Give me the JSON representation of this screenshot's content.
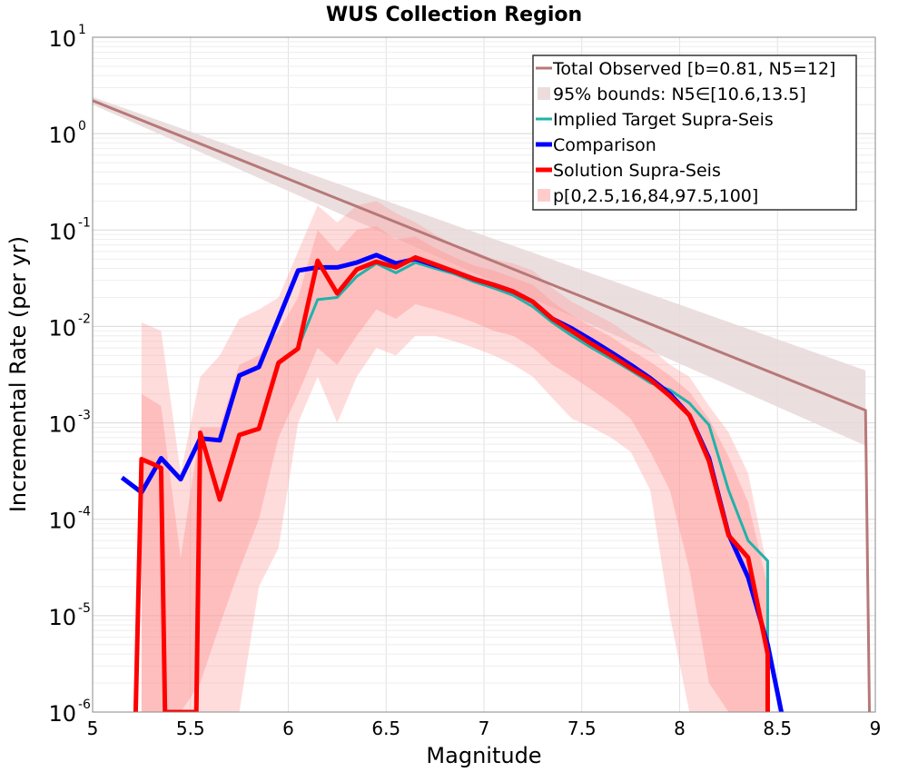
{
  "chart_data": {
    "type": "line",
    "title": "WUS Collection Region",
    "xlabel": "Magnitude",
    "ylabel": "Incremental Rate (per yr)",
    "xlim": [
      5,
      9
    ],
    "ylim": [
      1e-06,
      10
    ],
    "yscale": "log",
    "grid": true,
    "legend_position": "top-right",
    "x_ticks": [
      "5",
      "5.5",
      "6",
      "6.5",
      "7",
      "7.5",
      "8",
      "8.5",
      "9"
    ],
    "y_ticks": [
      {
        "base": "10",
        "exp": "1"
      },
      {
        "base": "10",
        "exp": "0"
      },
      {
        "base": "10",
        "exp": "-1"
      },
      {
        "base": "10",
        "exp": "-2"
      },
      {
        "base": "10",
        "exp": "-3"
      },
      {
        "base": "10",
        "exp": "-4"
      },
      {
        "base": "10",
        "exp": "-5"
      },
      {
        "base": "10",
        "exp": "-6"
      }
    ],
    "legend": [
      {
        "label": "Total Observed [b=0.81, N5=12]",
        "color": "#b87878",
        "kind": "line"
      },
      {
        "label": "95% bounds: N5∈[10.6,13.5]",
        "color": "#ecdcdc",
        "kind": "box"
      },
      {
        "label": "Implied Target Supra-Seis",
        "color": "#20b2aa",
        "kind": "line"
      },
      {
        "label": "Comparison",
        "color": "#0000ff",
        "kind": "thick"
      },
      {
        "label": "Solution Supra-Seis",
        "color": "#ff0000",
        "kind": "thick"
      },
      {
        "label": "p[0,2.5,16,84,97.5,100]",
        "color": "#ffcccc",
        "kind": "box"
      }
    ],
    "bounds": {
      "color": "#e8d8d8",
      "x": [
        5.0,
        8.95
      ],
      "lower": [
        2.0,
        0.00058
      ],
      "upper": [
        2.4,
        0.0035
      ]
    },
    "series": [
      {
        "name": "Total Observed [b=0.81, N5=12]",
        "color": "#b87878",
        "width": 3,
        "x": [
          5.0,
          8.95,
          8.97
        ],
        "y": [
          2.2,
          0.00135,
          1e-06
        ]
      },
      {
        "name": "Implied Target Supra-Seis",
        "color": "#20b2aa",
        "width": 3,
        "x": [
          6.05,
          6.15,
          6.25,
          6.35,
          6.45,
          6.55,
          6.65,
          6.75,
          6.85,
          6.95,
          7.05,
          7.15,
          7.25,
          7.35,
          7.45,
          7.55,
          7.65,
          7.75,
          7.85,
          7.95,
          8.05,
          8.15,
          8.25,
          8.35,
          8.45,
          8.45
        ],
        "y": [
          0.006,
          0.019,
          0.02,
          0.033,
          0.045,
          0.036,
          0.046,
          0.04,
          0.035,
          0.029,
          0.025,
          0.021,
          0.016,
          0.011,
          0.008,
          0.006,
          0.0046,
          0.0035,
          0.0026,
          0.0022,
          0.0016,
          0.00095,
          0.0002,
          6e-05,
          3.7e-05,
          1e-06
        ]
      },
      {
        "name": "Comparison",
        "color": "#0000ff",
        "width": 5,
        "x": [
          5.15,
          5.25,
          5.35,
          5.45,
          5.55,
          5.65,
          5.75,
          5.85,
          5.95,
          6.05,
          6.15,
          6.25,
          6.35,
          6.45,
          6.55,
          6.65,
          6.75,
          6.85,
          6.95,
          7.05,
          7.15,
          7.25,
          7.35,
          7.45,
          7.55,
          7.65,
          7.75,
          7.85,
          7.95,
          8.05,
          8.15,
          8.25,
          8.35,
          8.45,
          8.52
        ],
        "y": [
          0.00027,
          0.00019,
          0.00043,
          0.00026,
          0.00069,
          0.00066,
          0.0031,
          0.0038,
          0.012,
          0.038,
          0.041,
          0.041,
          0.046,
          0.055,
          0.045,
          0.05,
          0.043,
          0.037,
          0.031,
          0.027,
          0.023,
          0.018,
          0.012,
          0.0095,
          0.0072,
          0.0054,
          0.004,
          0.0029,
          0.002,
          0.0012,
          0.00043,
          7e-05,
          2.5e-05,
          5e-06,
          1e-06
        ]
      },
      {
        "name": "Solution Supra-Seis",
        "color": "#ff0000",
        "width": 5,
        "x": [
          5.22,
          5.25,
          5.3,
          5.35,
          5.37,
          5.53,
          5.55,
          5.65,
          5.75,
          5.85,
          5.95,
          6.05,
          6.15,
          6.25,
          6.35,
          6.45,
          6.55,
          6.65,
          6.75,
          6.85,
          6.95,
          7.05,
          7.15,
          7.25,
          7.35,
          7.45,
          7.55,
          7.65,
          7.75,
          7.85,
          7.95,
          8.05,
          8.15,
          8.25,
          8.35,
          8.45,
          8.45
        ],
        "y": [
          1e-06,
          0.00042,
          0.00038,
          0.00034,
          1e-06,
          1e-06,
          0.00079,
          0.00016,
          0.00075,
          0.00087,
          0.0042,
          0.0059,
          0.048,
          0.022,
          0.039,
          0.047,
          0.041,
          0.052,
          0.044,
          0.037,
          0.031,
          0.027,
          0.023,
          0.018,
          0.012,
          0.0089,
          0.0066,
          0.005,
          0.0037,
          0.0028,
          0.0019,
          0.0012,
          0.0004,
          6.8e-05,
          4e-05,
          4e-06,
          1e-06
        ]
      }
    ],
    "bands": {
      "color": "#ff9a9a",
      "x": [
        5.25,
        5.35,
        5.45,
        5.55,
        5.65,
        5.75,
        5.85,
        5.95,
        6.05,
        6.15,
        6.25,
        6.35,
        6.45,
        6.55,
        6.65,
        6.75,
        6.85,
        6.95,
        7.05,
        7.15,
        7.25,
        7.35,
        7.45,
        7.55,
        7.65,
        7.75,
        7.85,
        7.95,
        8.05,
        8.15,
        8.25,
        8.35,
        8.45
      ],
      "outer_low": [
        1e-06,
        1e-06,
        1e-06,
        1e-06,
        1e-06,
        1e-06,
        2e-05,
        5e-05,
        0.001,
        0.003,
        0.001,
        0.003,
        0.006,
        0.005,
        0.008,
        0.008,
        0.007,
        0.006,
        0.005,
        0.004,
        0.003,
        0.0018,
        0.0011,
        0.0009,
        0.0007,
        0.0005,
        0.0002,
        1e-05,
        1e-06,
        1e-06,
        1e-06,
        1e-06,
        1e-06
      ],
      "outer_high": [
        0.011,
        0.009,
        0.0003,
        0.003,
        0.005,
        0.012,
        0.015,
        0.02,
        0.06,
        0.18,
        0.12,
        0.18,
        0.2,
        0.15,
        0.12,
        0.09,
        0.07,
        0.06,
        0.05,
        0.045,
        0.038,
        0.025,
        0.018,
        0.014,
        0.011,
        0.008,
        0.006,
        0.004,
        0.003,
        0.0015,
        0.0008,
        0.0003,
        3e-05
      ],
      "inner_low": [
        1e-06,
        1e-06,
        1e-06,
        2e-06,
        8e-06,
        3e-05,
        0.0001,
        0.0007,
        0.002,
        0.006,
        0.004,
        0.008,
        0.015,
        0.012,
        0.017,
        0.015,
        0.013,
        0.011,
        0.009,
        0.008,
        0.006,
        0.004,
        0.003,
        0.0022,
        0.0016,
        0.0011,
        0.0005,
        0.0002,
        3e-05,
        2e-06,
        1e-06,
        1e-06,
        1e-06
      ],
      "inner_high": [
        0.002,
        0.0015,
        4e-05,
        0.0009,
        0.0009,
        0.004,
        0.005,
        0.009,
        0.02,
        0.1,
        0.06,
        0.1,
        0.11,
        0.08,
        0.085,
        0.065,
        0.052,
        0.043,
        0.038,
        0.032,
        0.027,
        0.018,
        0.013,
        0.01,
        0.0078,
        0.0057,
        0.0043,
        0.0031,
        0.0021,
        0.0011,
        0.00045,
        0.00015,
        2e-05
      ]
    }
  }
}
